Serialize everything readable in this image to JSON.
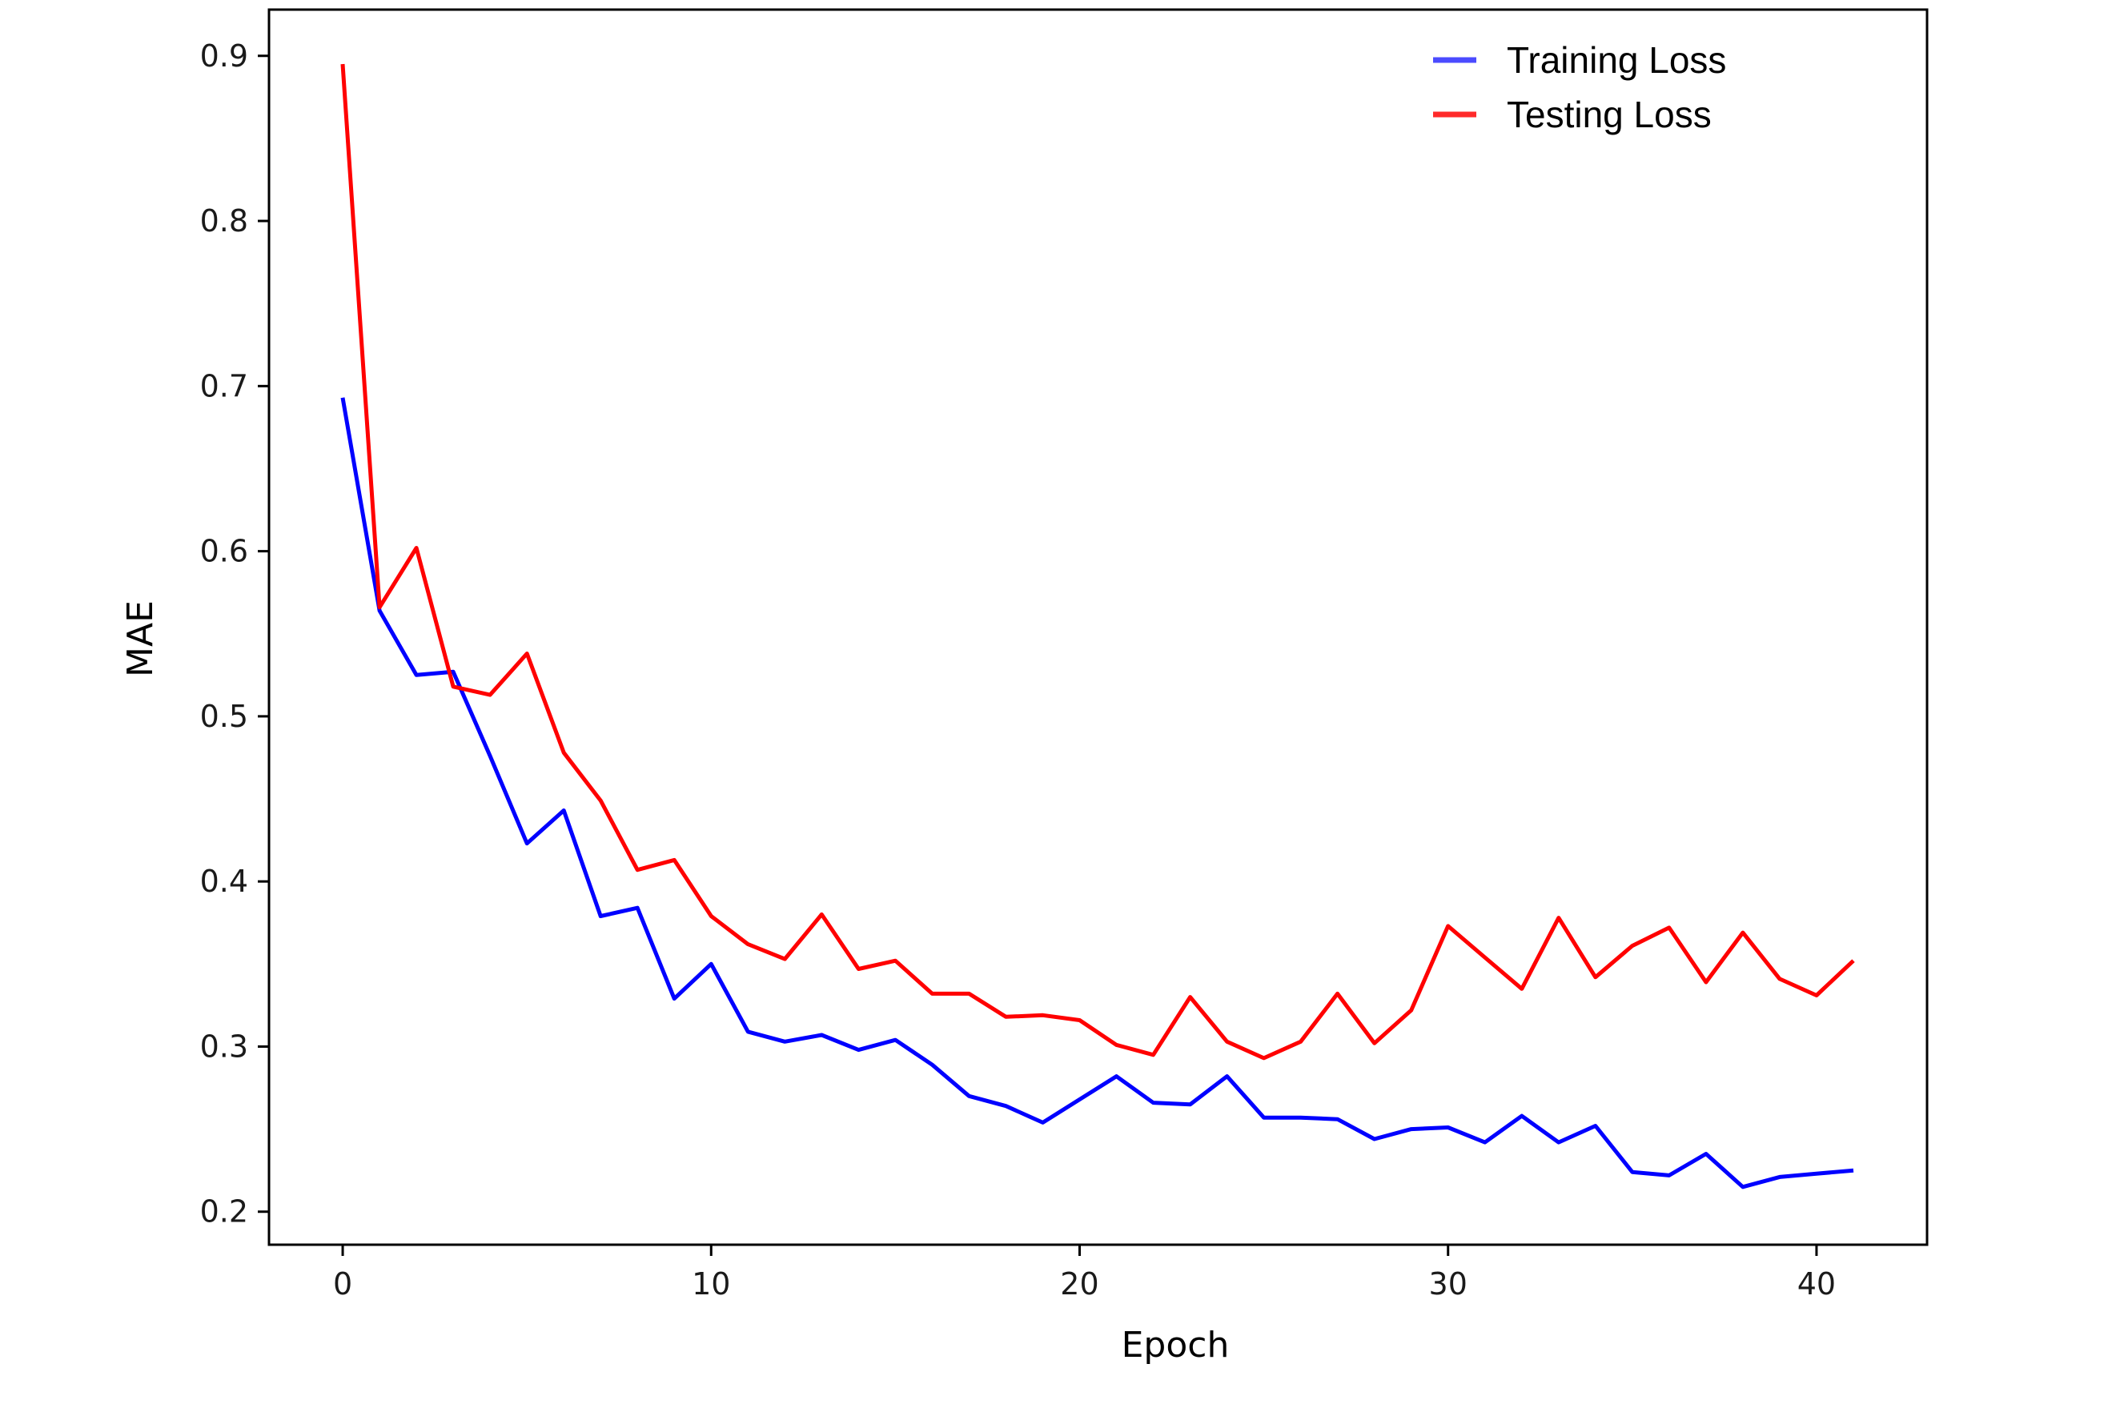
{
  "chart_data": {
    "type": "line",
    "title": "",
    "xlabel": "Epoch",
    "ylabel": "MAE",
    "xlim": [
      -2,
      43
    ],
    "ylim": [
      0.18,
      0.928
    ],
    "x_ticks": [
      0,
      10,
      20,
      30,
      40
    ],
    "y_ticks": [
      0.2,
      0.3,
      0.4,
      0.5,
      0.6,
      0.7,
      0.8,
      0.9
    ],
    "x_tick_labels": [
      "0",
      "10",
      "20",
      "30",
      "40"
    ],
    "y_tick_labels": [
      "0.2",
      "0.3",
      "0.4",
      "0.5",
      "0.6",
      "0.7",
      "0.8",
      "0.9"
    ],
    "grid": false,
    "legend_position": "top-right",
    "x": [
      0,
      1,
      2,
      3,
      4,
      5,
      6,
      7,
      8,
      9,
      10,
      11,
      12,
      13,
      14,
      15,
      16,
      17,
      18,
      19,
      20,
      21,
      22,
      23,
      24,
      25,
      26,
      27,
      28,
      29,
      30,
      31,
      32,
      33,
      34,
      35,
      36,
      37,
      38,
      39,
      40,
      41
    ],
    "series": [
      {
        "name": "Training Loss",
        "color": "#0000ff",
        "values": [
          0.693,
          0.564,
          0.525,
          0.527,
          0.476,
          0.423,
          0.443,
          0.379,
          0.384,
          0.329,
          0.35,
          0.309,
          0.303,
          0.307,
          0.298,
          0.304,
          0.289,
          0.27,
          0.264,
          0.254,
          0.268,
          0.282,
          0.266,
          0.265,
          0.282,
          0.257,
          0.257,
          0.256,
          0.244,
          0.25,
          0.251,
          0.242,
          0.258,
          0.242,
          0.252,
          0.224,
          0.222,
          0.235,
          0.215,
          0.221,
          0.223,
          0.225
        ]
      },
      {
        "name": "Testing Loss",
        "color": "#ff0000",
        "values": [
          0.895,
          0.566,
          0.602,
          0.518,
          0.513,
          0.538,
          0.478,
          0.449,
          0.407,
          0.413,
          0.379,
          0.362,
          0.353,
          0.38,
          0.347,
          0.352,
          0.332,
          0.332,
          0.318,
          0.319,
          0.316,
          0.301,
          0.295,
          0.33,
          0.303,
          0.293,
          0.303,
          0.332,
          0.302,
          0.322,
          0.373,
          0.354,
          0.335,
          0.378,
          0.342,
          0.361,
          0.372,
          0.339,
          0.369,
          0.341,
          0.331,
          0.352
        ]
      }
    ],
    "legend_swatch_colors": [
      "#4b4bff",
      "#ff2a2a"
    ]
  }
}
